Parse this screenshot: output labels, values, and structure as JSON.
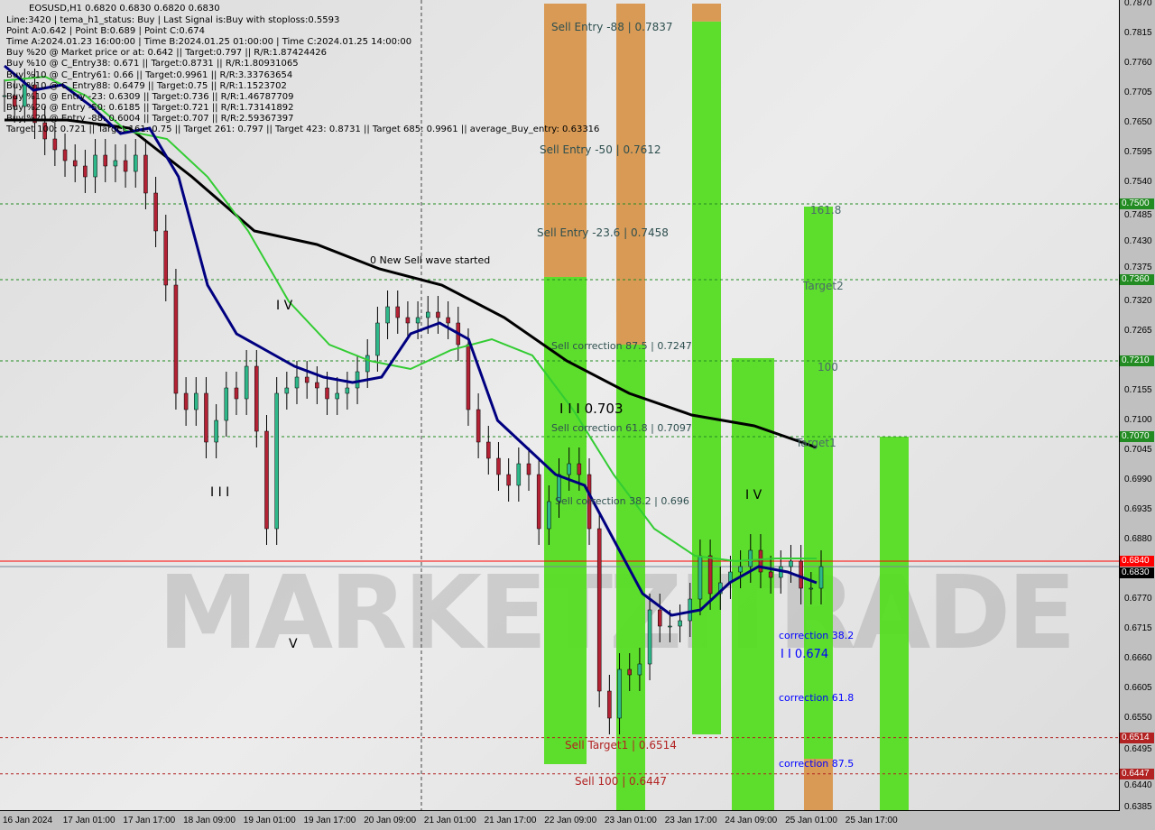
{
  "header": {
    "symbol_line": "EOSUSD,H1  0.6820 0.6830 0.6820 0.6830",
    "lines": [
      "Line:3420 | tema_h1_status: Buy | Last Signal is:Buy with stoploss:0.5593",
      "Point A:0.642 | Point B:0.689 | Point C:0.674",
      "Time A:2024.01.23 16:00:00 | Time B:2024.01.25 01:00:00 | Time C:2024.01.25 14:00:00",
      "Buy %20 @ Market price or at: 0.642 || Target:0.797 || R/R:1.87424426",
      "Buy %10 @ C_Entry38: 0.671 || Target:0.8731 || R/R:1.80931065",
      "Buy %10 @ C_Entry61: 0.66 || Target:0.9961 || R/R:3.33763654",
      "Buy %10 @ C_Entry88: 0.6479 || Target:0.75 || R/R:1.1523702",
      "Buy %10 @ Entry -23: 0.6309 || Target:0.736 || R/R:1.46787709",
      "Buy %20 @ Entry -50: 0.6185 || Target:0.721 || R/R:1.73141892",
      "Buy %20 @ Entry -88: 0.6004 || Target:0.707 || R/R:2.59367397",
      "Target 100: 0.721 || Target 161: 0.75 || Target 261: 0.797 || Target 423: 0.8731 || Target 685: 0.9961 || average_Buy_entry: 0.63316"
    ]
  },
  "watermark": "MARKETZITRADE",
  "chart_data": {
    "type": "candlestick",
    "title": "EOSUSD,H1",
    "ylim": [
      0.6385,
      0.787
    ],
    "x_range": [
      "16 Jan 2024 00:00",
      "25 Jan 2024 23:00"
    ],
    "x_ticks": [
      "16 Jan 2024",
      "17 Jan 01:00",
      "17 Jan 17:00",
      "18 Jan 09:00",
      "19 Jan 01:00",
      "19 Jan 17:00",
      "20 Jan 09:00",
      "21 Jan 01:00",
      "21 Jan 17:00",
      "22 Jan 09:00",
      "23 Jan 01:00",
      "23 Jan 17:00",
      "24 Jan 09:00",
      "25 Jan 01:00",
      "25 Jan 17:00"
    ],
    "y_ticks": [
      "0.7870",
      "0.7815",
      "0.7760",
      "0.7705",
      "0.7650",
      "0.7595",
      "0.7540",
      "0.7485",
      "0.7430",
      "0.7375",
      "0.7320",
      "0.7265",
      "0.7155",
      "0.7100",
      "0.7045",
      "0.6990",
      "0.6935",
      "0.6880",
      "0.6770",
      "0.6715",
      "0.6660",
      "0.6605",
      "0.6550",
      "0.6495",
      "0.6440",
      "0.6385"
    ],
    "closes": [
      0.77,
      0.768,
      0.772,
      0.765,
      0.762,
      0.76,
      0.758,
      0.757,
      0.755,
      0.759,
      0.757,
      0.758,
      0.756,
      0.759,
      0.752,
      0.745,
      0.735,
      0.715,
      0.712,
      0.715,
      0.706,
      0.71,
      0.716,
      0.714,
      0.72,
      0.708,
      0.69,
      0.715,
      0.716,
      0.718,
      0.717,
      0.716,
      0.714,
      0.715,
      0.716,
      0.719,
      0.722,
      0.728,
      0.731,
      0.729,
      0.728,
      0.729,
      0.73,
      0.729,
      0.728,
      0.724,
      0.712,
      0.706,
      0.703,
      0.7,
      0.698,
      0.702,
      0.7,
      0.69,
      0.695,
      0.7,
      0.702,
      0.7,
      0.69,
      0.66,
      0.655,
      0.664,
      0.663,
      0.665,
      0.675,
      0.672,
      0.672,
      0.673,
      0.677,
      0.685,
      0.678,
      0.68,
      0.682,
      0.683,
      0.686,
      0.682,
      0.681,
      0.683,
      0.684,
      0.679,
      0.679,
      0.683
    ],
    "moving_averages": [
      {
        "color": "#000000",
        "values": [
          0.7655,
          0.7655,
          0.764,
          0.755,
          0.745,
          0.7425,
          0.738,
          0.735,
          0.729,
          0.721,
          0.715,
          0.711,
          0.709,
          0.705
        ]
      },
      {
        "color": "#33cc33",
        "values": [
          0.7728,
          0.7735,
          0.77,
          0.7635,
          0.762,
          0.755,
          0.745,
          0.732,
          0.724,
          0.721,
          0.7195,
          0.723,
          0.725,
          0.722,
          0.712,
          0.7,
          0.69,
          0.685,
          0.684,
          0.6845,
          0.6845
        ]
      },
      {
        "color": "#000080",
        "values": [
          0.7755,
          0.771,
          0.772,
          0.768,
          0.763,
          0.764,
          0.755,
          0.735,
          0.726,
          0.723,
          0.72,
          0.718,
          0.717,
          0.718,
          0.726,
          0.728,
          0.725,
          0.71,
          0.705,
          0.7,
          0.698,
          0.688,
          0.678,
          0.674,
          0.675,
          0.68,
          0.683,
          0.682,
          0.68
        ]
      }
    ],
    "levels": [
      {
        "price": 0.75,
        "label": "0.7500",
        "color": "#228b22"
      },
      {
        "price": 0.736,
        "label": "0.7360",
        "color": "#228b22"
      },
      {
        "price": 0.721,
        "label": "0.7210",
        "color": "#228b22"
      },
      {
        "price": 0.707,
        "label": "0.7070",
        "color": "#228b22"
      },
      {
        "price": 0.6514,
        "label": "0.6514",
        "color": "#b22222"
      },
      {
        "price": 0.6447,
        "label": "0.6447",
        "color": "#b22222"
      }
    ],
    "bid": {
      "price": 0.684,
      "label": "0.6840",
      "color": "#ff0000"
    },
    "last": {
      "price": 0.683,
      "label": "0.6830",
      "color": "#000000"
    },
    "zones": [
      {
        "orange": [
          0.7365,
          0.787
        ],
        "green": [
          0.6465,
          0.7365
        ]
      },
      {
        "orange": [
          0.724,
          0.787
        ],
        "green": [
          0.638,
          0.724
        ]
      },
      {
        "orange": [
          0.7837,
          0.787
        ],
        "green": [
          0.652,
          0.7837
        ]
      },
      {
        "green": [
          0.638,
          0.7215
        ]
      },
      {
        "green": [
          0.6475,
          0.7495
        ],
        "orange": [
          0.638,
          0.6475
        ]
      },
      {
        "green": [
          0.638,
          0.707
        ]
      }
    ],
    "annotations": {
      "sell_entry_88": "Sell Entry -88 | 0.7837",
      "sell_entry_50": "Sell Entry -50 | 0.7612",
      "sell_entry_23": "Sell Entry -23.6 | 0.7458",
      "sell_corr_875": "Sell correction 87.5 | 0.7247",
      "sell_corr_618": "Sell correction 61.8 | 0.7097",
      "sell_corr_382": "Sell correction 38.2 | 0.696",
      "wave3": "I I I 0.703",
      "new_sell": "0 New Sell wave started",
      "iv1": "I V",
      "iii1": "I I I",
      "v1": "V",
      "iv2": "I V",
      "t1618": "161.8",
      "target2": "Target2",
      "t100": "100",
      "target1": "Target1",
      "sell_target1": "Sell Target1 | 0.6514",
      "sell_100": "Sell 100 | 0.6447",
      "corr382": "correction 38.2",
      "wave_c": "I I 0.674",
      "corr618": "correction 61.8",
      "corr875": "correction 87.5"
    }
  }
}
